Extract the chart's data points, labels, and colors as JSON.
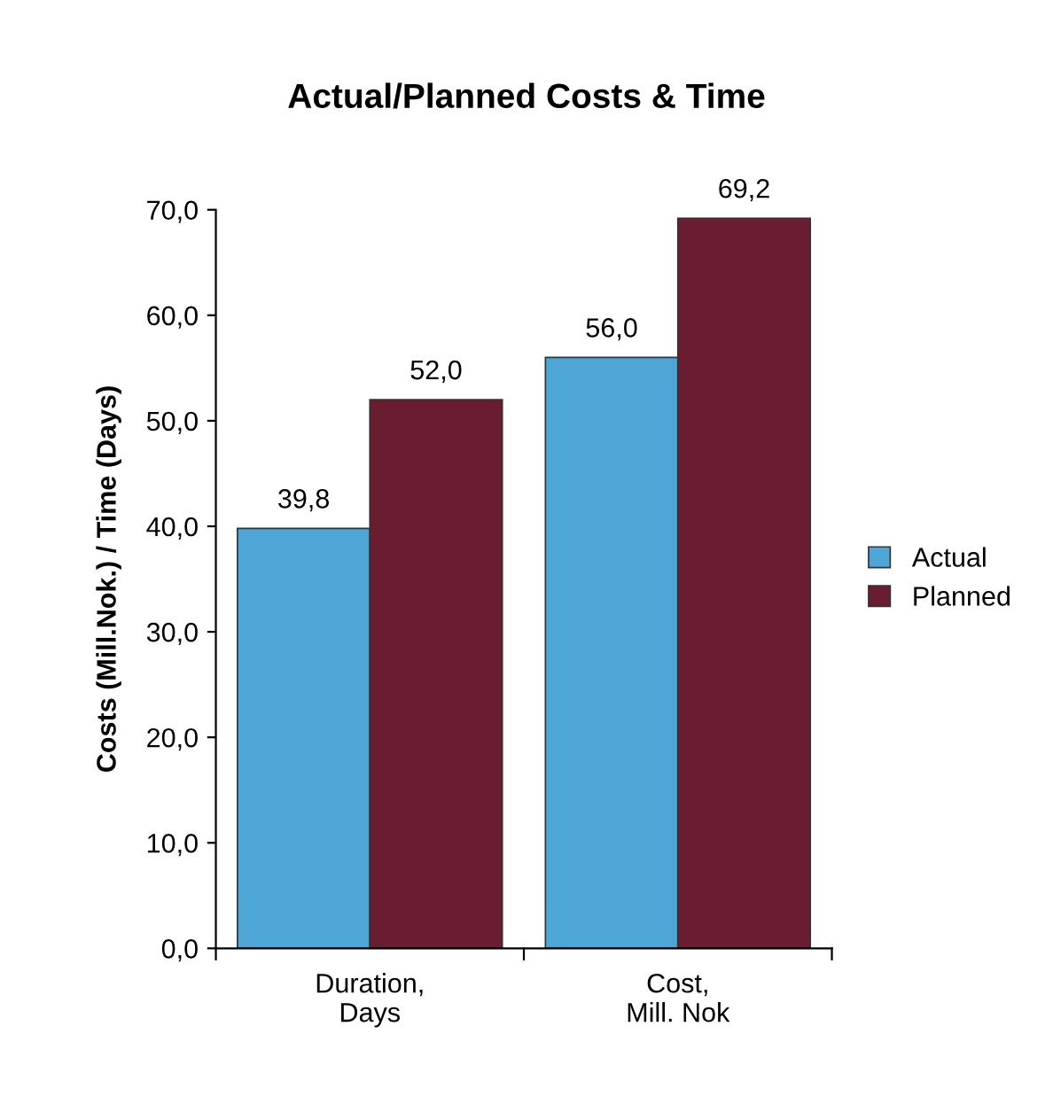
{
  "chart_data": {
    "type": "bar",
    "title": "Actual/Planned Costs & Time",
    "ylabel": "Costs (Mill.Nok.) / Time (Days)",
    "categories": [
      "Duration,\nDays",
      "Cost,\nMill. Nok"
    ],
    "series": [
      {
        "name": "Actual",
        "color": "#4da6d6",
        "values": [
          39.8,
          56.0
        ],
        "value_labels": [
          "39,8",
          "56,0"
        ]
      },
      {
        "name": "Planned",
        "color": "#6a1c30",
        "values": [
          52.0,
          69.2
        ],
        "value_labels": [
          "52,0",
          "69,2"
        ]
      }
    ],
    "ylim": [
      0,
      70
    ],
    "yticks": [
      {
        "value": 0,
        "label": "0,0"
      },
      {
        "value": 10,
        "label": "10,0"
      },
      {
        "value": 20,
        "label": "20,0"
      },
      {
        "value": 30,
        "label": "30,0"
      },
      {
        "value": 40,
        "label": "40,0"
      },
      {
        "value": 50,
        "label": "50,0"
      },
      {
        "value": 60,
        "label": "60,0"
      },
      {
        "value": 70,
        "label": "70,0"
      }
    ],
    "grid": false,
    "legend": "right"
  }
}
